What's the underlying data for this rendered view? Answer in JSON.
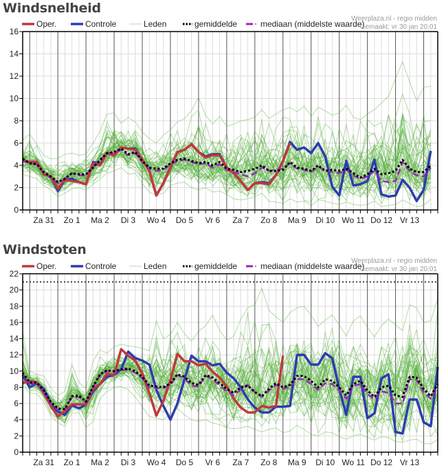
{
  "page": {
    "sections": [
      {
        "title": "Windsnelheid"
      },
      {
        "title": "Windstoten"
      }
    ]
  },
  "legend": {
    "items": [
      {
        "key": "oper",
        "label": "Oper.",
        "color": "#c0393b"
      },
      {
        "key": "controle",
        "label": "Controle",
        "color": "#2e3cb0"
      },
      {
        "key": "leden",
        "label": "Leden",
        "color": "#55b03a"
      },
      {
        "key": "gemiddelde",
        "label": "gemiddelde",
        "color": "#000000"
      },
      {
        "key": "mediaan",
        "label": "mediaan (middelste waarde)",
        "color": "#a020c8"
      }
    ]
  },
  "credit": {
    "line1": "Weerplaza.nl - regio midden",
    "line2": "Gemaakt: vr 30 jan 20:01"
  },
  "chart_data": [
    {
      "type": "line",
      "title": "Windsnelheid",
      "xlabel": "",
      "ylabel": "",
      "ylim": [
        0,
        16
      ],
      "yticks": [
        0,
        2,
        4,
        6,
        8,
        10,
        12,
        14,
        16
      ],
      "grid": true,
      "legend": "top",
      "x_step": "6h",
      "x_ticks": [
        "Za 31",
        "Zo 1",
        "Ma 2",
        "Di 3",
        "Wo 4",
        "Do 5",
        "Vr 6",
        "Za 7",
        "Zo 8",
        "Ma 9",
        "Di 10",
        "Wo 11",
        "Do 12",
        "Vr 13"
      ],
      "series": [
        {
          "name": "Oper.",
          "key": "oper",
          "values": [
            4.4,
            4.3,
            4.3,
            3.2,
            3.0,
            1.9,
            2.7,
            2.6,
            2.5,
            2.3,
            4.2,
            4.0,
            5.1,
            4.9,
            5.6,
            5.5,
            5.4,
            4.5,
            3.5,
            1.3,
            2.4,
            3.8,
            5.2,
            5.4,
            5.9,
            5.2,
            4.7,
            4.9,
            4.9,
            3.8,
            3.3,
            2.6,
            1.8,
            2.4,
            2.4,
            2.3,
            3.1,
            4.4,
            6.0
          ]
        },
        {
          "name": "Controle",
          "key": "controle",
          "values": [
            4.4,
            4.3,
            4.3,
            3.2,
            3.0,
            1.7,
            2.7,
            2.8,
            2.5,
            2.3,
            4.3,
            4.1,
            5.1,
            4.9,
            5.6,
            5.5,
            5.5,
            4.5,
            3.5,
            1.3,
            2.4,
            3.8,
            5.2,
            5.4,
            5.9,
            5.2,
            4.8,
            5.0,
            5.0,
            3.8,
            3.3,
            2.6,
            1.8,
            2.4,
            2.5,
            2.4,
            3.1,
            4.4,
            6.1,
            5.4,
            5.6,
            5.1,
            6.0,
            4.8,
            2.1,
            1.3,
            4.4,
            2.2,
            2.3,
            2.6,
            4.5,
            1.4,
            1.2,
            1.3,
            2.7,
            2.0,
            0.8,
            1.8,
            5.3
          ]
        },
        {
          "name": "gemiddelde",
          "key": "gemiddelde",
          "values": [
            4.6,
            4.2,
            4.1,
            3.4,
            3.0,
            2.5,
            2.8,
            3.3,
            3.2,
            3.2,
            3.8,
            4.5,
            5.1,
            5.2,
            5.5,
            5.0,
            5.2,
            4.4,
            3.8,
            3.7,
            3.7,
            4.2,
            4.5,
            4.6,
            4.4,
            4.2,
            4.3,
            4.0,
            4.3,
            3.7,
            3.6,
            3.4,
            3.5,
            3.7,
            4.0,
            3.5,
            3.5,
            3.6,
            4.3,
            3.8,
            3.7,
            3.5,
            4.0,
            3.5,
            3.6,
            3.5,
            3.7,
            3.3,
            2.9,
            3.2,
            3.7,
            3.2,
            3.3,
            3.5,
            4.5,
            3.7,
            3.4,
            3.4,
            4.0
          ]
        },
        {
          "name": "mediaan (middelste waarde)",
          "key": "mediaan",
          "values": [
            4.4,
            4.2,
            4.1,
            3.3,
            2.9,
            2.4,
            2.8,
            3.3,
            3.1,
            3.1,
            3.9,
            4.5,
            5.1,
            5.1,
            5.4,
            4.9,
            5.1,
            4.3,
            3.7,
            3.5,
            3.6,
            4.1,
            4.4,
            4.5,
            4.3,
            4.1,
            4.2,
            3.8,
            4.1,
            3.6,
            3.4,
            3.2,
            3.0,
            3.3,
            3.8,
            3.5,
            3.6,
            3.7,
            4.2,
            3.7,
            3.6,
            3.4,
            3.9,
            3.5,
            3.4,
            3.3,
            3.6,
            3.1,
            2.8,
            3.0,
            3.5,
            2.6,
            2.5,
            2.6,
            4.3,
            3.5,
            3.1,
            3.0,
            3.8
          ]
        }
      ],
      "members": {
        "count": 50,
        "min": [
          3.2,
          3.0,
          2.8,
          2.2,
          1.8,
          1.2,
          1.5,
          1.9,
          2.0,
          1.8,
          2.3,
          2.8,
          3.3,
          3.5,
          3.8,
          3.2,
          3.3,
          2.4,
          1.6,
          1.3,
          1.5,
          2.2,
          2.4,
          2.5,
          2.0,
          1.8,
          2.0,
          1.6,
          1.7,
          1.4,
          1.0,
          0.9,
          1.0,
          1.2,
          1.5,
          0.8,
          0.7,
          0.6,
          1.0,
          0.7,
          0.8,
          0.4,
          0.9,
          0.8,
          0.6,
          0.5,
          0.7,
          0.5,
          0.4,
          0.5,
          0.8,
          0.3,
          0.4,
          0.5,
          0.9,
          0.6,
          0.3,
          0.4,
          1.0
        ],
        "max": [
          6.3,
          6.8,
          5.9,
          4.9,
          4.6,
          4.6,
          5.0,
          5.1,
          4.9,
          5.0,
          6.0,
          7.1,
          8.6,
          8.7,
          7.8,
          8.3,
          7.9,
          7.0,
          6.4,
          6.0,
          6.7,
          7.2,
          7.9,
          8.2,
          8.9,
          10.1,
          8.5,
          7.7,
          8.4,
          7.5,
          7.7,
          8.0,
          8.1,
          8.3,
          9.0,
          8.2,
          8.6,
          9.0,
          9.2,
          8.8,
          9.3,
          8.4,
          9.2,
          8.9,
          8.5,
          8.7,
          9.4,
          8.3,
          8.1,
          8.6,
          9.0,
          9.6,
          10.2,
          11.8,
          13.3,
          11.5,
          9.8,
          11.0,
          11.1
        ]
      }
    },
    {
      "type": "line",
      "title": "Windstoten",
      "xlabel": "",
      "ylabel": "",
      "ylim": [
        0,
        22
      ],
      "yticks": [
        0,
        2,
        4,
        6,
        8,
        10,
        12,
        14,
        16,
        18,
        20,
        22
      ],
      "grid": true,
      "legend": "top",
      "reference_line": 21,
      "x_step": "6h",
      "x_ticks": [
        "Za 31",
        "Zo 1",
        "Ma 2",
        "Di 3",
        "Wo 4",
        "Do 5",
        "Vr 6",
        "Za 7",
        "Zo 8",
        "Ma 9",
        "Di 10",
        "Wo 11",
        "Do 12",
        "Vr 13"
      ],
      "series": [
        {
          "name": "Oper.",
          "key": "oper",
          "values": [
            8.5,
            8.8,
            8.6,
            7.3,
            5.7,
            4.4,
            5.1,
            5.9,
            5.9,
            5.9,
            7.8,
            8.4,
            9.7,
            9.5,
            12.7,
            11.9,
            11.3,
            9.7,
            7.3,
            4.5,
            6.3,
            8.9,
            12.1,
            11.2,
            11.2,
            10.7,
            10.9,
            9.9,
            9.2,
            8.1,
            6.6,
            5.5,
            4.9,
            4.9,
            5.7,
            5.5,
            5.7,
            11.9
          ]
        },
        {
          "name": "Controle",
          "key": "controle",
          "values": [
            9.5,
            8.0,
            8.5,
            7.8,
            6.0,
            5.0,
            4.6,
            5.8,
            5.4,
            5.9,
            7.5,
            8.4,
            9.3,
            9.5,
            10.2,
            12.4,
            11.6,
            11.3,
            10.8,
            7.7,
            5.7,
            4.0,
            6.0,
            9.0,
            11.9,
            11.2,
            11.2,
            10.7,
            10.9,
            9.8,
            9.1,
            8.0,
            6.5,
            5.5,
            4.9,
            4.9,
            5.6,
            5.6,
            5.7,
            12.0,
            12.0,
            10.8,
            10.8,
            12.2,
            11.6,
            7.8,
            4.6,
            9.3,
            9.3,
            4.2,
            4.8,
            9.1,
            9.6,
            2.5,
            2.3,
            6.5,
            6.5,
            3.7,
            3.2,
            10.5
          ]
        },
        {
          "name": "gemiddelde",
          "key": "gemiddelde",
          "values": [
            9.8,
            8.6,
            8.6,
            7.6,
            6.2,
            5.4,
            5.3,
            6.9,
            7.0,
            6.2,
            8.1,
            9.6,
            10.1,
            10.0,
            10.2,
            10.3,
            10.0,
            9.3,
            8.2,
            8.1,
            8.0,
            8.5,
            9.6,
            9.3,
            8.5,
            8.3,
            9.5,
            9.2,
            8.5,
            7.8,
            7.3,
            8.0,
            8.2,
            7.4,
            6.9,
            7.8,
            8.5,
            8.0,
            8.3,
            9.4,
            9.4,
            8.8,
            8.0,
            9.0,
            8.8,
            8.0,
            7.0,
            8.4,
            8.8,
            7.6,
            6.8,
            8.0,
            8.2,
            7.0,
            6.8,
            9.3,
            9.2,
            7.8,
            6.9,
            8.4
          ]
        },
        {
          "name": "mediaan (middelste waarde)",
          "key": "mediaan",
          "values": [
            9.6,
            8.5,
            8.4,
            7.4,
            6.0,
            5.2,
            5.3,
            6.8,
            6.8,
            6.1,
            8.0,
            9.5,
            10.0,
            9.8,
            10.1,
            10.2,
            9.8,
            9.1,
            8.0,
            7.9,
            7.9,
            8.3,
            9.5,
            9.1,
            8.2,
            8.1,
            9.4,
            9.0,
            8.2,
            7.5,
            7.0,
            7.7,
            8.3,
            7.4,
            6.8,
            7.6,
            8.3,
            7.8,
            8.1,
            9.0,
            9.0,
            8.4,
            7.7,
            8.5,
            8.4,
            7.6,
            6.6,
            8.2,
            8.4,
            7.2,
            6.5,
            7.5,
            7.3,
            6.0,
            6.0,
            9.0,
            8.9,
            7.4,
            6.6,
            8.1
          ]
        }
      ],
      "members": {
        "count": 50,
        "min": [
          8.2,
          7.3,
          7.2,
          6.2,
          4.5,
          3.6,
          3.2,
          4.8,
          4.9,
          3.0,
          3.8,
          6.6,
          7.5,
          8.0,
          8.1,
          7.7,
          6.8,
          5.6,
          4.4,
          4.2,
          4.0,
          4.7,
          5.4,
          4.6,
          4.0,
          3.8,
          4.0,
          3.6,
          3.4,
          3.0,
          2.9,
          3.0,
          3.2,
          2.8,
          2.5,
          2.8,
          3.0,
          2.4,
          2.6,
          3.3,
          2.8,
          2.2,
          2.0,
          2.5,
          2.4,
          1.9,
          1.6,
          2.0,
          2.2,
          1.8,
          1.5,
          1.9,
          1.8,
          1.3,
          1.2,
          1.5,
          1.6,
          1.1,
          1.0,
          1.6
        ],
        "max": [
          14.8,
          10.0,
          9.6,
          9.4,
          7.9,
          7.0,
          7.5,
          10.8,
          8.6,
          7.8,
          11.2,
          12.6,
          12.2,
          13.0,
          13.3,
          13.1,
          13.0,
          12.8,
          12.5,
          16.2,
          14.0,
          14.5,
          16.0,
          14.6,
          13.7,
          14.9,
          15.6,
          16.9,
          15.0,
          13.8,
          14.3,
          16.4,
          17.8,
          18.2,
          20.2,
          17.5,
          16.7,
          16.0,
          17.2,
          17.8,
          18.0,
          16.9,
          15.5,
          16.3,
          16.9,
          15.7,
          14.3,
          16.2,
          16.8,
          15.4,
          14.2,
          15.6,
          16.4,
          15.7,
          15.0,
          18.2,
          17.8,
          16.0,
          16.2,
          18.9
        ]
      }
    }
  ]
}
